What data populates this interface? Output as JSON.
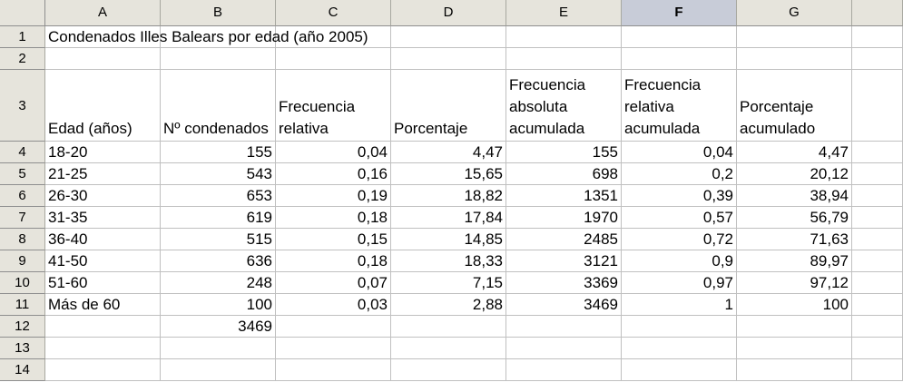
{
  "columns": [
    "A",
    "B",
    "C",
    "D",
    "E",
    "F",
    "G"
  ],
  "active_column": "F",
  "row_numbers": [
    "1",
    "2",
    "3",
    "4",
    "5",
    "6",
    "7",
    "8",
    "9",
    "10",
    "11",
    "12",
    "13",
    "14"
  ],
  "title": "Condenados Illes Balears por edad (año 2005)",
  "headers": [
    "Edad (años)",
    "Nº condenados",
    "Frecuencia relativa",
    "Porcentaje",
    "Frecuencia absoluta acumulada",
    "Frecuencia relativa acumulada",
    "Porcentaje acumulado"
  ],
  "rows": [
    [
      "18-20",
      "155",
      "0,04",
      "4,47",
      "155",
      "0,04",
      "4,47"
    ],
    [
      "21-25",
      "543",
      "0,16",
      "15,65",
      "698",
      "0,2",
      "20,12"
    ],
    [
      "26-30",
      "653",
      "0,19",
      "18,82",
      "1351",
      "0,39",
      "38,94"
    ],
    [
      "31-35",
      "619",
      "0,18",
      "17,84",
      "1970",
      "0,57",
      "56,79"
    ],
    [
      "36-40",
      "515",
      "0,15",
      "14,85",
      "2485",
      "0,72",
      "71,63"
    ],
    [
      "41-50",
      "636",
      "0,18",
      "18,33",
      "3121",
      "0,9",
      "89,97"
    ],
    [
      "51-60",
      "248",
      "0,07",
      "7,15",
      "3369",
      "0,97",
      "97,12"
    ],
    [
      "Más de 60",
      "100",
      "0,03",
      "2,88",
      "3469",
      "1",
      "100"
    ]
  ],
  "total": "3469"
}
